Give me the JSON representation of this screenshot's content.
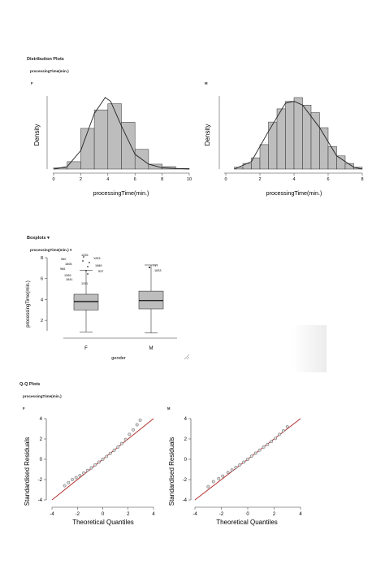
{
  "distribution": {
    "title": "Distribution Plots",
    "variable": "processingTime(min.)",
    "panels": [
      {
        "label": "F",
        "ylabel": "Density",
        "xlabel": "processingTime(min.)"
      },
      {
        "label": "M",
        "ylabel": "Density",
        "xlabel": "processingTime(min.)"
      }
    ]
  },
  "boxplots": {
    "title": "Boxplots",
    "variable": "processingTime(min.)",
    "ylabel": "processingTime(min.)",
    "xlabel": "gender",
    "outlier_labels_F": [
      "1226",
      "1253",
      "960",
      "1606",
      "1989",
      "966",
      "537",
      "1269",
      "1641",
      "1101"
    ],
    "outlier_labels_M": [
      "717",
      "1633"
    ]
  },
  "qq": {
    "title": "Q-Q Plots",
    "variable": "processingTime(min.)",
    "panels": [
      {
        "label": "F",
        "ylabel": "Standardised Residuals",
        "xlabel": "Theoretical Quantiles"
      },
      {
        "label": "M",
        "ylabel": "Standardised Residuals",
        "xlabel": "Theoretical Quantiles"
      }
    ]
  },
  "chart_data": [
    {
      "type": "bar",
      "panel": "F",
      "bin_edges": [
        0,
        1,
        2,
        3,
        4,
        5,
        6,
        7,
        8,
        9,
        10
      ],
      "values": [
        0.01,
        0.06,
        0.33,
        0.48,
        0.53,
        0.38,
        0.16,
        0.04,
        0.02,
        0.005
      ],
      "xlim": [
        0,
        10
      ],
      "xticks": [
        "0",
        "2",
        "4",
        "6",
        "8",
        "10"
      ],
      "xlabel": "processingTime(min.)",
      "ylabel": "Density",
      "density_curve": [
        [
          0,
          0
        ],
        [
          1,
          0.02
        ],
        [
          2,
          0.15
        ],
        [
          3,
          0.45
        ],
        [
          3.8,
          0.58
        ],
        [
          4.2,
          0.55
        ],
        [
          5,
          0.35
        ],
        [
          6,
          0.12
        ],
        [
          7,
          0.04
        ],
        [
          8,
          0.01
        ],
        [
          10,
          0
        ]
      ]
    },
    {
      "type": "bar",
      "panel": "M",
      "bin_edges": [
        0.5,
        1,
        1.5,
        2,
        2.5,
        3,
        3.5,
        4,
        4.5,
        5,
        5.5,
        6,
        6.5,
        7,
        7.5,
        8
      ],
      "values": [
        0.01,
        0.03,
        0.06,
        0.13,
        0.25,
        0.32,
        0.36,
        0.38,
        0.34,
        0.3,
        0.22,
        0.12,
        0.07,
        0.03,
        0.01
      ],
      "xlim": [
        0,
        8
      ],
      "xticks": [
        "0",
        "2",
        "4",
        "6",
        "8"
      ],
      "xlabel": "processingTime(min.)",
      "ylabel": "Density",
      "density_curve": [
        [
          0.5,
          0
        ],
        [
          1.5,
          0.04
        ],
        [
          2.5,
          0.2
        ],
        [
          3.5,
          0.35
        ],
        [
          4,
          0.36
        ],
        [
          4.5,
          0.34
        ],
        [
          5.5,
          0.22
        ],
        [
          6.5,
          0.07
        ],
        [
          7.5,
          0.01
        ],
        [
          8,
          0
        ]
      ]
    },
    {
      "type": "box",
      "categories": [
        "F",
        "M"
      ],
      "stats": [
        {
          "min": 0.9,
          "q1": 3.0,
          "median": 3.8,
          "q3": 4.5,
          "max": 6.8
        },
        {
          "min": 0.8,
          "q1": 3.1,
          "median": 3.9,
          "q3": 4.8,
          "max": 7.3
        }
      ],
      "ylim": [
        1,
        8
      ],
      "yticks": [
        "2",
        "4",
        "6",
        "8"
      ],
      "xlabel": "gender",
      "ylabel": "processingTime(min.)"
    },
    {
      "type": "scatter",
      "panel": "F",
      "xlim": [
        -4,
        4
      ],
      "ylim": [
        -4,
        4
      ],
      "xticks": [
        "-4",
        "-2",
        "0",
        "2",
        "4"
      ],
      "yticks": [
        "-4",
        "-2",
        "0",
        "2",
        "4"
      ],
      "xlabel": "Theoretical Quantiles",
      "ylabel": "Standardised Residuals",
      "points": [
        [
          -3.0,
          -2.6
        ],
        [
          -2.7,
          -2.3
        ],
        [
          -2.4,
          -2.0
        ],
        [
          -2.1,
          -1.8
        ],
        [
          -1.8,
          -1.6
        ],
        [
          -1.5,
          -1.35
        ],
        [
          -1.2,
          -1.1
        ],
        [
          -0.9,
          -0.85
        ],
        [
          -0.6,
          -0.55
        ],
        [
          -0.3,
          -0.28
        ],
        [
          0,
          0
        ],
        [
          0.3,
          0.28
        ],
        [
          0.6,
          0.58
        ],
        [
          0.9,
          0.88
        ],
        [
          1.2,
          1.2
        ],
        [
          1.5,
          1.55
        ],
        [
          1.8,
          1.95
        ],
        [
          2.1,
          2.45
        ],
        [
          2.4,
          2.9
        ],
        [
          2.7,
          3.4
        ],
        [
          2.95,
          3.85
        ]
      ]
    },
    {
      "type": "scatter",
      "panel": "M",
      "xlim": [
        -4,
        4
      ],
      "ylim": [
        -4,
        4
      ],
      "xticks": [
        "-4",
        "-2",
        "0",
        "2",
        "4"
      ],
      "yticks": [
        "-4",
        "-2",
        "0",
        "2",
        "4"
      ],
      "xlabel": "Theoretical Quantiles",
      "ylabel": "Standardised Residuals",
      "points": [
        [
          -3.0,
          -2.7
        ],
        [
          -2.6,
          -2.2
        ],
        [
          -2.2,
          -1.9
        ],
        [
          -1.9,
          -1.65
        ],
        [
          -1.5,
          -1.3
        ],
        [
          -1.2,
          -1.05
        ],
        [
          -0.9,
          -0.8
        ],
        [
          -0.6,
          -0.55
        ],
        [
          -0.3,
          -0.28
        ],
        [
          0,
          0
        ],
        [
          0.3,
          0.3
        ],
        [
          0.6,
          0.6
        ],
        [
          0.9,
          0.9
        ],
        [
          1.2,
          1.2
        ],
        [
          1.5,
          1.45
        ],
        [
          1.8,
          1.75
        ],
        [
          2.1,
          2.05
        ],
        [
          2.4,
          2.45
        ],
        [
          2.7,
          2.8
        ],
        [
          3.0,
          3.2
        ]
      ]
    }
  ]
}
